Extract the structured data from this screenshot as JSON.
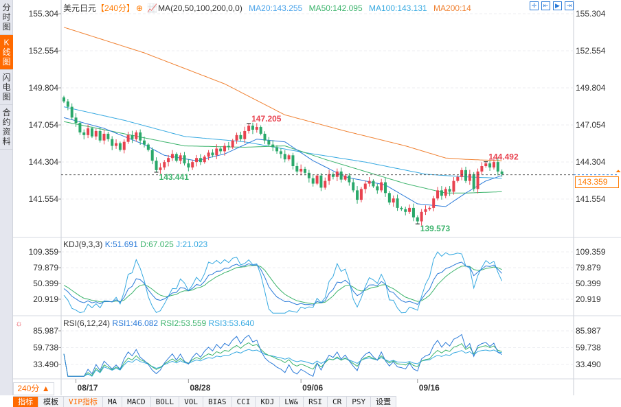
{
  "sidebar": {
    "tabs": [
      {
        "label": "分时图"
      },
      {
        "label": "K线图",
        "active": true
      },
      {
        "label": "闪电图"
      },
      {
        "label": "合约资料"
      }
    ]
  },
  "header": {
    "symbol": "美元日元",
    "period": "【240分】",
    "ma_setting": "MA(20,50,100,200,0,0)",
    "ma20": "MA20:143.255",
    "ma50": "MA50:142.095",
    "ma100": "MA100:143.131",
    "ma200": "MA200:14"
  },
  "toolbar_icons": [
    "crosshair-icon",
    "zoom-fit-icon",
    "play-forward-icon",
    "scroll-end-icon"
  ],
  "price_axis": {
    "ticks": [
      "155.304",
      "152.554",
      "149.804",
      "147.054",
      "144.304",
      "141.554"
    ],
    "current": "143.359",
    "current_value": 143.359
  },
  "annotations": {
    "high1": "147.205",
    "low1": "143.441",
    "low2": "139.573",
    "high2": "144.492"
  },
  "kdj": {
    "legend": "KDJ(9,3,3)",
    "k": "K:51.691",
    "d": "D:67.025",
    "j": "J:21.023",
    "ticks": [
      "109.359",
      "79.879",
      "50.399",
      "20.919"
    ]
  },
  "rsi": {
    "legend": "RSI(6,12,24)",
    "r1": "RSI1:46.082",
    "r2": "RSI2:53.559",
    "r3": "RSI3:53.640",
    "ticks": [
      "85.987",
      "59.738",
      "33.490"
    ]
  },
  "dates": [
    "08/17",
    "08/28",
    "09/06",
    "09/16"
  ],
  "period_selector": "240分 ▲",
  "bottom_tabs": [
    "指标",
    "模板",
    "VIP指标",
    "MA",
    "MACD",
    "BOLL",
    "VOL",
    "BIAS",
    "CCI",
    "KDJ",
    "LW&",
    "RSI",
    "CR",
    "PSY",
    "设置"
  ],
  "colors": {
    "up": "#e8424f",
    "down": "#2aa86a",
    "ma20": "#2a7ad8",
    "ma50": "#3bb36b",
    "ma100": "#36a9e1",
    "ma200": "#f08030",
    "accent": "#ff6a00"
  },
  "chart_data": {
    "type": "candlestick",
    "closes": [
      148.8,
      148.4,
      147.6,
      147.2,
      146.5,
      146.3,
      146.8,
      146.2,
      146.6,
      145.9,
      146.4,
      146.0,
      145.5,
      145.7,
      145.2,
      145.8,
      146.3,
      146.0,
      146.5,
      145.9,
      145.6,
      145.2,
      144.4,
      143.7,
      143.9,
      144.3,
      144.6,
      144.9,
      144.4,
      144.8,
      144.2,
      143.9,
      144.3,
      144.6,
      144.3,
      144.7,
      145.0,
      144.8,
      145.3,
      145.1,
      145.5,
      145.4,
      145.9,
      146.3,
      146.0,
      146.6,
      147.0,
      146.7,
      146.9,
      146.4,
      145.9,
      145.6,
      145.4,
      145.1,
      144.9,
      144.5,
      144.8,
      144.0,
      143.6,
      143.8,
      143.5,
      143.1,
      142.7,
      143.3,
      142.4,
      142.9,
      143.4,
      143.2,
      143.6,
      143.0,
      143.3,
      142.8,
      142.2,
      141.5,
      142.3,
      142.7,
      142.9,
      142.5,
      142.2,
      142.8,
      142.0,
      141.3,
      141.6,
      140.9,
      140.8,
      140.6,
      140.9,
      140.2,
      139.9,
      140.6,
      140.8,
      140.9,
      141.6,
      142.2,
      141.8,
      142.3,
      142.1,
      142.9,
      143.2,
      143.7,
      142.9,
      143.4,
      142.3,
      143.6,
      144.0,
      144.2,
      143.9,
      144.3,
      143.6,
      143.4
    ],
    "ma20": [
      [
        0,
        147.6
      ],
      [
        10,
        146.8
      ],
      [
        20,
        145.6
      ],
      [
        25,
        144.8
      ],
      [
        33,
        144.4
      ],
      [
        40,
        144.9
      ],
      [
        48,
        146.0
      ],
      [
        55,
        145.8
      ],
      [
        62,
        144.4
      ],
      [
        70,
        143.2
      ],
      [
        80,
        142.6
      ],
      [
        88,
        141.2
      ],
      [
        95,
        141.0
      ],
      [
        100,
        142.0
      ],
      [
        105,
        142.9
      ],
      [
        109,
        143.3
      ]
    ],
    "ma50": [
      [
        0,
        147.3
      ],
      [
        15,
        146.4
      ],
      [
        30,
        145.5
      ],
      [
        45,
        145.4
      ],
      [
        55,
        145.5
      ],
      [
        65,
        144.5
      ],
      [
        75,
        143.6
      ],
      [
        85,
        142.7
      ],
      [
        95,
        142.0
      ],
      [
        100,
        142.0
      ],
      [
        109,
        142.1
      ]
    ],
    "ma100": [
      [
        0,
        148.4
      ],
      [
        15,
        147.4
      ],
      [
        30,
        146.2
      ],
      [
        45,
        145.8
      ],
      [
        60,
        145.0
      ],
      [
        75,
        144.3
      ],
      [
        90,
        143.4
      ],
      [
        100,
        143.2
      ],
      [
        109,
        143.1
      ]
    ],
    "ma200": [
      [
        0,
        154.3
      ],
      [
        20,
        152.4
      ],
      [
        40,
        150.1
      ],
      [
        55,
        147.8
      ],
      [
        70,
        146.6
      ],
      [
        85,
        145.5
      ],
      [
        95,
        144.6
      ],
      [
        100,
        144.5
      ],
      [
        109,
        144.4
      ]
    ],
    "ylim": [
      139.0,
      155.304
    ],
    "date_index": [
      3,
      31,
      59,
      88
    ]
  }
}
